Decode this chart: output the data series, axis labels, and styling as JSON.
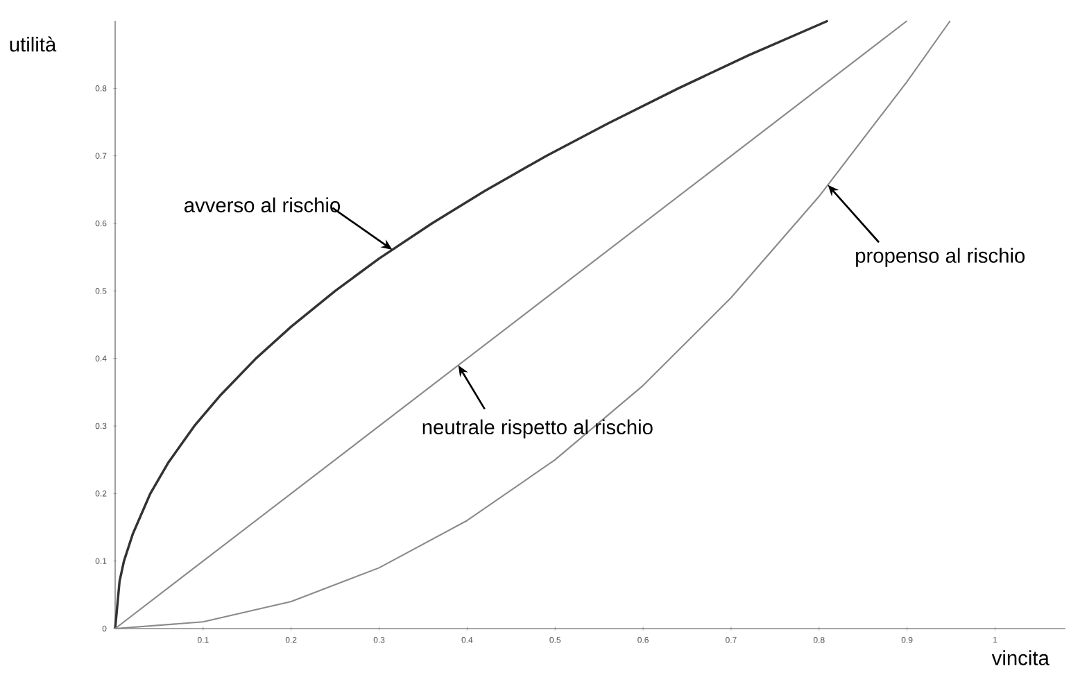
{
  "chart_data": {
    "type": "line",
    "xlabel": "vincita",
    "ylabel": "utilità",
    "xlim": [
      0,
      1.08
    ],
    "ylim": [
      0,
      0.9
    ],
    "xticks": [
      0.1,
      0.2,
      0.3,
      0.4,
      0.5,
      0.6,
      0.7,
      0.8,
      0.9,
      1
    ],
    "yticks": [
      0,
      0.1,
      0.2,
      0.3,
      0.4,
      0.5,
      0.6,
      0.7,
      0.8
    ],
    "grid": false,
    "marker": "none",
    "line_style": "solid",
    "series": [
      {
        "color": "#333333",
        "x": [
          0,
          0.005,
          0.01,
          0.02,
          0.04,
          0.06,
          0.09,
          0.12,
          0.16,
          0.2,
          0.25,
          0.3,
          0.36,
          0.42,
          0.49,
          0.56,
          0.64,
          0.72,
          0.81
        ],
        "values": [
          0,
          0.07,
          0.1,
          0.14,
          0.2,
          0.245,
          0.3,
          0.346,
          0.4,
          0.447,
          0.5,
          0.548,
          0.6,
          0.648,
          0.7,
          0.748,
          0.8,
          0.849,
          0.9
        ]
      },
      {
        "color": "#8a8a8a",
        "x": [
          0,
          0.9
        ],
        "values": [
          0,
          0.9
        ]
      },
      {
        "color": "#8a8a8a",
        "x": [
          0,
          0.1,
          0.2,
          0.3,
          0.4,
          0.5,
          0.6,
          0.7,
          0.8,
          0.9,
          0.949
        ],
        "values": [
          0,
          0.01,
          0.04,
          0.09,
          0.16,
          0.25,
          0.36,
          0.49,
          0.64,
          0.81,
          0.9
        ]
      }
    ],
    "annotations": [
      {
        "text": "avverso al rischio",
        "x": 0.315,
        "y": 0.561
      },
      {
        "text": "neutrale rispetto al rischio",
        "x": 0.39,
        "y": 0.39
      },
      {
        "text": "propenso al rischio",
        "x": 0.81,
        "y": 0.657
      }
    ]
  }
}
